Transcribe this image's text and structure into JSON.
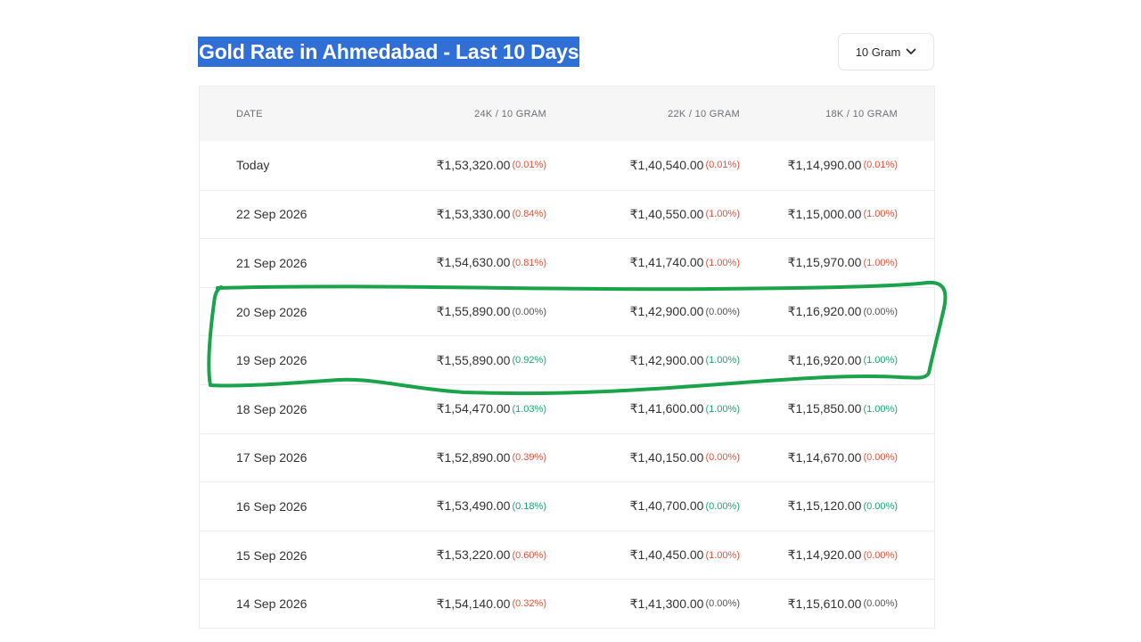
{
  "title": "Gold Rate in Ahmedabad - Last 10 Days",
  "unit_select": {
    "value": "10 Gram",
    "icon": "chevron-down-icon"
  },
  "colors": {
    "up": "#e2553b",
    "down": "#1ea672",
    "neutral": "#555555",
    "title_highlight": "#2f6fd6",
    "annotation": "#1aa34a"
  },
  "table": {
    "headers": {
      "date": "DATE",
      "k24": "24K / 10 GRAM",
      "k22": "22K / 10 GRAM",
      "k18": "18K / 10 GRAM"
    },
    "rows": [
      {
        "date": "Today",
        "k24": "₹1,53,320.00",
        "k24_chg": "(0.01%)",
        "k24_dir": "red",
        "k22": "₹1,40,540.00",
        "k22_chg": "(0.01%)",
        "k22_dir": "red",
        "k18": "₹1,14,990.00",
        "k18_chg": "(0.01%)",
        "k18_dir": "red"
      },
      {
        "date": "22 Sep 2026",
        "k24": "₹1,53,330.00",
        "k24_chg": "(0.84%)",
        "k24_dir": "red",
        "k22": "₹1,40,550.00",
        "k22_chg": "(1.00%)",
        "k22_dir": "red",
        "k18": "₹1,15,000.00",
        "k18_chg": "(1.00%)",
        "k18_dir": "red"
      },
      {
        "date": "21 Sep 2026",
        "k24": "₹1,54,630.00",
        "k24_chg": "(0.81%)",
        "k24_dir": "red",
        "k22": "₹1,41,740.00",
        "k22_chg": "(1.00%)",
        "k22_dir": "red",
        "k18": "₹1,15,970.00",
        "k18_chg": "(1.00%)",
        "k18_dir": "red"
      },
      {
        "date": "20 Sep 2026",
        "k24": "₹1,55,890.00",
        "k24_chg": "(0.00%)",
        "k24_dir": "gray",
        "k22": "₹1,42,900.00",
        "k22_chg": "(0.00%)",
        "k22_dir": "gray",
        "k18": "₹1,16,920.00",
        "k18_chg": "(0.00%)",
        "k18_dir": "gray"
      },
      {
        "date": "19 Sep 2026",
        "k24": "₹1,55,890.00",
        "k24_chg": "(0.92%)",
        "k24_dir": "green",
        "k22": "₹1,42,900.00",
        "k22_chg": "(1.00%)",
        "k22_dir": "green",
        "k18": "₹1,16,920.00",
        "k18_chg": "(1.00%)",
        "k18_dir": "green"
      },
      {
        "date": "18 Sep 2026",
        "k24": "₹1,54,470.00",
        "k24_chg": "(1.03%)",
        "k24_dir": "green",
        "k22": "₹1,41,600.00",
        "k22_chg": "(1.00%)",
        "k22_dir": "green",
        "k18": "₹1,15,850.00",
        "k18_chg": "(1.00%)",
        "k18_dir": "green"
      },
      {
        "date": "17 Sep 2026",
        "k24": "₹1,52,890.00",
        "k24_chg": "(0.39%)",
        "k24_dir": "red",
        "k22": "₹1,40,150.00",
        "k22_chg": "(0.00%)",
        "k22_dir": "red",
        "k18": "₹1,14,670.00",
        "k18_chg": "(0.00%)",
        "k18_dir": "red"
      },
      {
        "date": "16 Sep 2026",
        "k24": "₹1,53,490.00",
        "k24_chg": "(0.18%)",
        "k24_dir": "green",
        "k22": "₹1,40,700.00",
        "k22_chg": "(0.00%)",
        "k22_dir": "green",
        "k18": "₹1,15,120.00",
        "k18_chg": "(0.00%)",
        "k18_dir": "green"
      },
      {
        "date": "15 Sep 2026",
        "k24": "₹1,53,220.00",
        "k24_chg": "(0.60%)",
        "k24_dir": "red",
        "k22": "₹1,40,450.00",
        "k22_chg": "(1.00%)",
        "k22_dir": "red",
        "k18": "₹1,14,920.00",
        "k18_chg": "(0.00%)",
        "k18_dir": "red"
      },
      {
        "date": "14 Sep 2026",
        "k24": "₹1,54,140.00",
        "k24_chg": "(0.32%)",
        "k24_dir": "red",
        "k22": "₹1,41,300.00",
        "k22_chg": "(0.00%)",
        "k22_dir": "gray",
        "k18": "₹1,15,610.00",
        "k18_chg": "(0.00%)",
        "k18_dir": "gray"
      }
    ]
  }
}
